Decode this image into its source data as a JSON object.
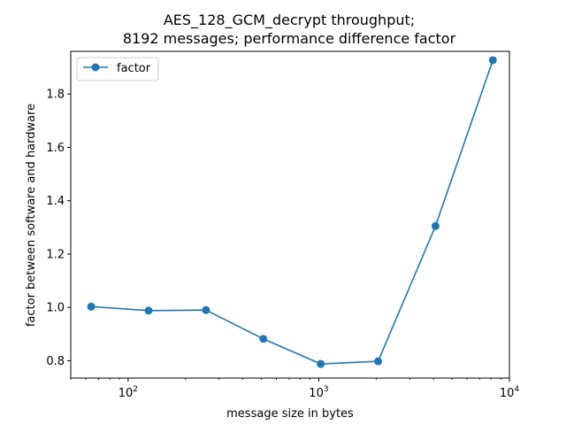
{
  "chart_data": {
    "type": "line",
    "title": [
      "AES_128_GCM_decrypt throughput;",
      "8192 messages; performance difference factor"
    ],
    "xlabel": "message size in bytes",
    "ylabel": "factor between software and hardware",
    "xscale": "log",
    "xlim": [
      50,
      10000
    ],
    "ylim": [
      0.735,
      1.96
    ],
    "x_ticks": [
      {
        "value": 100,
        "base": "10",
        "exp": "2"
      },
      {
        "value": 1000,
        "base": "10",
        "exp": "3"
      },
      {
        "value": 10000,
        "base": "10",
        "exp": "4"
      }
    ],
    "y_ticks": [
      0.8,
      1.0,
      1.2,
      1.4,
      1.6,
      1.8
    ],
    "y_tick_labels": [
      "0.8",
      "1.0",
      "1.2",
      "1.4",
      "1.6",
      "1.8"
    ],
    "legend_position": "top-left",
    "grid": false,
    "series": [
      {
        "name": "factor",
        "color": "#1f77b4",
        "x": [
          64,
          128,
          256,
          512,
          1024,
          2048,
          4096,
          8192
        ],
        "y": [
          1.003,
          0.988,
          0.99,
          0.882,
          0.788,
          0.798,
          1.305,
          1.927
        ]
      }
    ]
  }
}
